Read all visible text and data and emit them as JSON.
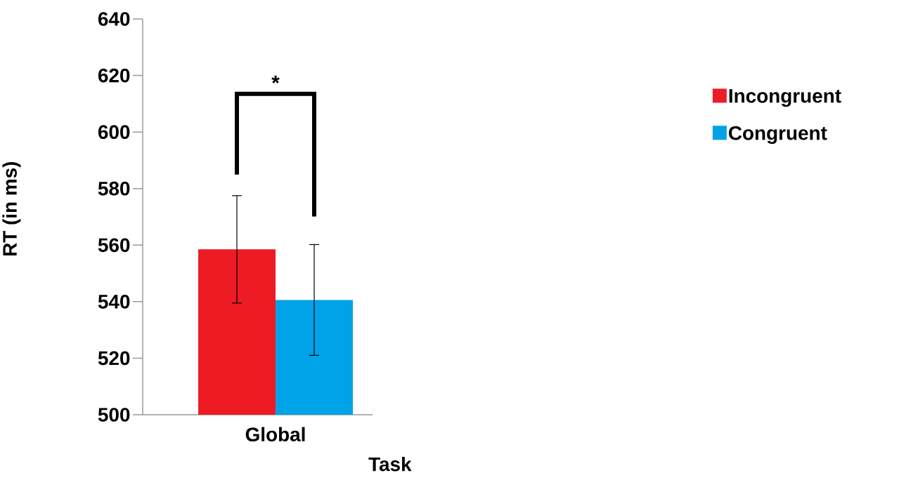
{
  "chart_data": {
    "type": "bar",
    "xlabel": "Task",
    "ylabel": "RT (in ms)",
    "categories": [
      "Global"
    ],
    "series": [
      {
        "name": "Incongruent",
        "color": "#ed1c24",
        "values": [
          558.5
        ],
        "errors": [
          19
        ]
      },
      {
        "name": "Congruent",
        "color": "#00a2e8",
        "values": [
          540.6
        ],
        "errors": [
          19.6
        ]
      }
    ],
    "ylim": [
      500,
      640
    ],
    "yticks": [
      500,
      520,
      540,
      560,
      580,
      600,
      620,
      640
    ],
    "grid": false,
    "legend": "right",
    "annotations": [
      "*"
    ]
  }
}
